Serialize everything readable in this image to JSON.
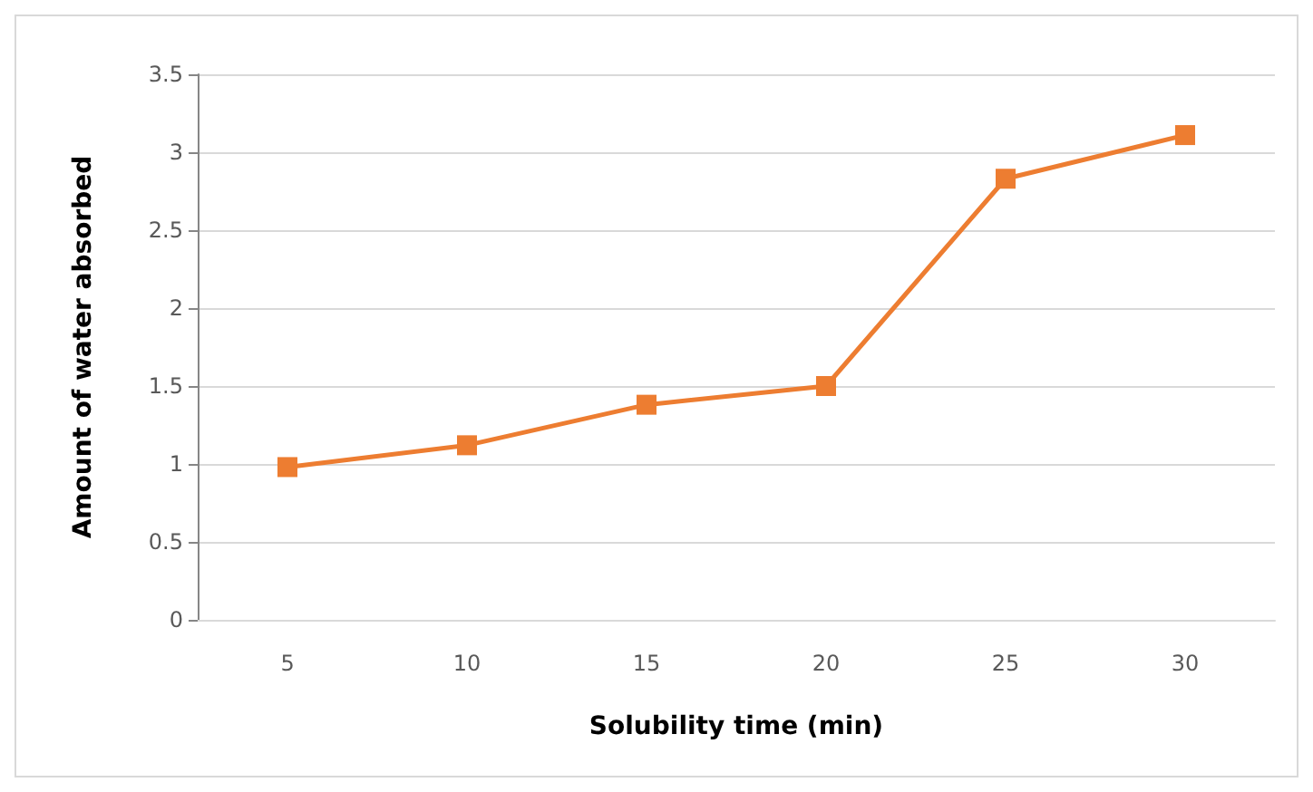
{
  "chart_data": {
    "type": "line",
    "xlabel": "Solubility time (min)",
    "ylabel": "Amount of water absorbed",
    "categories": [
      "5",
      "10",
      "15",
      "20",
      "25",
      "30"
    ],
    "series": [
      {
        "color": "#ed7d31",
        "values": [
          0.98,
          1.12,
          1.38,
          1.5,
          2.83,
          3.11
        ]
      }
    ],
    "ylim": [
      0,
      3.5
    ],
    "yticks": [
      0,
      0.5,
      1,
      1.5,
      2,
      2.5,
      3,
      3.5
    ],
    "grid": "y",
    "marker": "square",
    "line_style": "solid"
  }
}
